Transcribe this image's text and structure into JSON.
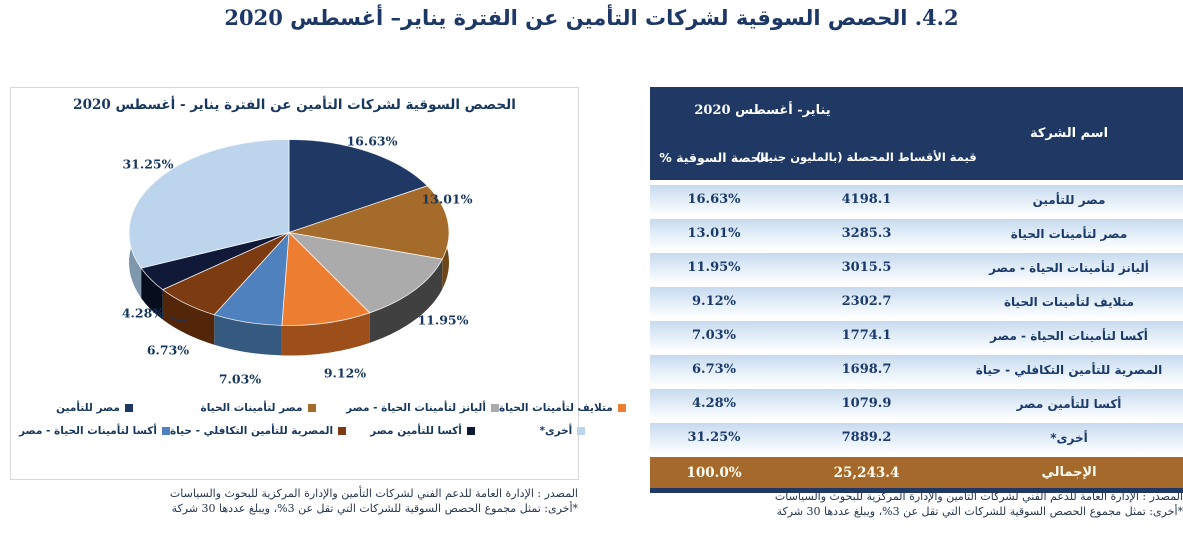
{
  "page": {
    "title": "4.2. الحصص السوقية لشركات التأمين عن الفترة يناير– أغسطس 2020"
  },
  "chart": {
    "title": "الحصص السوقية لشركات التأمين عن الفترة يناير - أغسطس 2020",
    "footer_source": "المصدر : الإدارة العامة للدعم الفني لشركات التأمين والإدارة المركزية للبحوث والسياسات",
    "footer_note": "*أخرى: تمثل مجموع الحصص السوقية للشركات التي تقل عن 3%، ويبلغ عددها 30 شركة"
  },
  "chart_data": {
    "type": "pie",
    "title": "الحصص السوقية لشركات التأمين عن الفترة يناير - أغسطس 2020",
    "labels": [
      "مصر للتأمين",
      "مصر لتأمينات الحياة",
      "أليانز لتأمينات الحياة - مصر",
      "متلايف لتأمينات الحياة",
      "أكسا لتأمينات الحياة - مصر",
      "المصرية للتأمين التكافلي - حياة",
      "أكسا للتأمين مصر",
      "أخرى*"
    ],
    "values": [
      16.63,
      13.01,
      11.95,
      9.12,
      7.03,
      6.73,
      4.28,
      31.25
    ],
    "value_labels": [
      "16.63%",
      "13.01%",
      "11.95%",
      "9.12%",
      "7.03%",
      "6.73%",
      "4.28%",
      "31.25%"
    ],
    "colors": [
      "#1F3864",
      "#A56B2A",
      "#ABABAB",
      "#ED7D31",
      "#4E81BD",
      "#7C3B11",
      "#101A38",
      "#BCD5EC"
    ],
    "colors_3d_side": [
      "#142742",
      "#6F4717",
      "#404040",
      "#9C4F1B",
      "#35597F",
      "#53260A",
      "#080D1D",
      "#7F97AC"
    ],
    "legend_position": "bottom",
    "style": "3d-pie"
  },
  "table": {
    "header": {
      "period": "يناير- أغسطس 2020",
      "company": "اسم الشركة",
      "premiums": "قيمة الأقساط المحصلة (بالمليون جنيه)",
      "share": "الحصة السوقية %"
    },
    "rows": [
      {
        "company": "مصر للتأمين",
        "premiums": "4198.1",
        "share": "16.63%"
      },
      {
        "company": "مصر لتأمينات الحياة",
        "premiums": "3285.3",
        "share": "13.01%"
      },
      {
        "company": "أليانز لتأمينات الحياة - مصر",
        "premiums": "3015.5",
        "share": "11.95%"
      },
      {
        "company": "متلايف لتأمينات الحياة",
        "premiums": "2302.7",
        "share": "9.12%"
      },
      {
        "company": "أكسا لتأمينات الحياة - مصر",
        "premiums": "1774.1",
        "share": "7.03%"
      },
      {
        "company": "المصرية للتأمين التكافلي - حياة",
        "premiums": "1698.7",
        "share": "6.73%"
      },
      {
        "company": "أكسا للتأمين مصر",
        "premiums": "1079.9",
        "share": "4.28%"
      },
      {
        "company": "أخرى*",
        "premiums": "7889.2",
        "share": "31.25%"
      }
    ],
    "total": {
      "label": "الإجمالي",
      "premiums": "25,243.4",
      "share": "100.0%"
    },
    "footer_source": "المصدر : الإدارة العامة للدعم الفني لشركات التأمين والإدارة المركزية للبحوث والسياسات",
    "footer_note": "*أخرى: تمثل مجموع الحصص السوقية للشركات التي تقل عن 3%، ويبلغ عددها 30 شركة"
  },
  "colors": {
    "accent_navy": "#1F3864",
    "total_row_brown": "#A5692B",
    "row_stripe_blue": "#C6DAEE",
    "text_navy": "#1B3A6B"
  }
}
